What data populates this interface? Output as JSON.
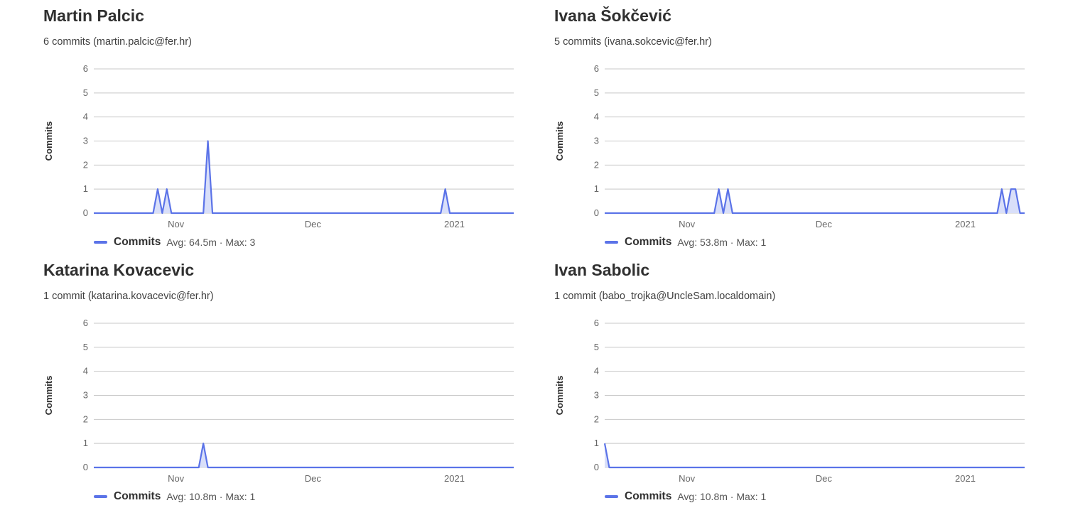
{
  "authors": [
    {
      "name": "Martin Palcic",
      "meta": "6 commits (martin.palcic@fer.hr)",
      "legend": {
        "series": "Commits",
        "stats": "Avg: 64.5m · Max: 3"
      }
    },
    {
      "name": "Ivana Šokčević",
      "meta": "5 commits (ivana.sokcevic@fer.hr)",
      "legend": {
        "series": "Commits",
        "stats": "Avg: 53.8m · Max: 1"
      }
    },
    {
      "name": "Katarina Kovacevic",
      "meta": "1 commit (katarina.kovacevic@fer.hr)",
      "legend": {
        "series": "Commits",
        "stats": "Avg: 10.8m · Max: 1"
      }
    },
    {
      "name": "Ivan Sabolic",
      "meta": "1 commit (babo_trojka@UncleSam.localdomain)",
      "legend": {
        "series": "Commits",
        "stats": "Avg: 10.8m · Max: 1"
      }
    }
  ],
  "chart_data": [
    {
      "type": "area",
      "ylabel": "Commits",
      "ylim": [
        0,
        6
      ],
      "yticks": [
        "0",
        "1",
        "2",
        "3",
        "4",
        "5",
        "6"
      ],
      "x_range": [
        "2020-10-14",
        "2021-01-14"
      ],
      "xticks": [
        {
          "label": "Nov",
          "date": "2020-11-01"
        },
        {
          "label": "Dec",
          "date": "2020-12-01"
        },
        {
          "label": "2021",
          "date": "2021-01-01"
        }
      ],
      "grid": true,
      "legend_position": "bottom-left",
      "series": [
        {
          "name": "Commits",
          "color": "#5b73e8",
          "points": [
            [
              "2020-10-14",
              0
            ],
            [
              "2020-10-27",
              0
            ],
            [
              "2020-10-28",
              1
            ],
            [
              "2020-10-29",
              0
            ],
            [
              "2020-10-30",
              1
            ],
            [
              "2020-10-31",
              0
            ],
            [
              "2020-11-07",
              0
            ],
            [
              "2020-11-08",
              3
            ],
            [
              "2020-11-09",
              0
            ],
            [
              "2020-12-29",
              0
            ],
            [
              "2020-12-30",
              1
            ],
            [
              "2020-12-31",
              0
            ],
            [
              "2021-01-14",
              0
            ]
          ]
        }
      ]
    },
    {
      "type": "area",
      "ylabel": "Commits",
      "ylim": [
        0,
        6
      ],
      "yticks": [
        "0",
        "1",
        "2",
        "3",
        "4",
        "5",
        "6"
      ],
      "x_range": [
        "2020-10-14",
        "2021-01-14"
      ],
      "xticks": [
        {
          "label": "Nov",
          "date": "2020-11-01"
        },
        {
          "label": "Dec",
          "date": "2020-12-01"
        },
        {
          "label": "2021",
          "date": "2021-01-01"
        }
      ],
      "grid": true,
      "legend_position": "bottom-left",
      "series": [
        {
          "name": "Commits",
          "color": "#5b73e8",
          "points": [
            [
              "2020-10-14",
              0
            ],
            [
              "2020-11-07",
              0
            ],
            [
              "2020-11-08",
              1
            ],
            [
              "2020-11-09",
              0
            ],
            [
              "2020-11-10",
              1
            ],
            [
              "2020-11-11",
              0
            ],
            [
              "2021-01-08",
              0
            ],
            [
              "2021-01-09",
              1
            ],
            [
              "2021-01-10",
              0
            ],
            [
              "2021-01-11",
              1
            ],
            [
              "2021-01-12",
              1
            ],
            [
              "2021-01-13",
              0
            ],
            [
              "2021-01-14",
              0
            ]
          ]
        }
      ]
    },
    {
      "type": "area",
      "ylabel": "Commits",
      "ylim": [
        0,
        6
      ],
      "yticks": [
        "0",
        "1",
        "2",
        "3",
        "4",
        "5",
        "6"
      ],
      "x_range": [
        "2020-10-14",
        "2021-01-14"
      ],
      "xticks": [
        {
          "label": "Nov",
          "date": "2020-11-01"
        },
        {
          "label": "Dec",
          "date": "2020-12-01"
        },
        {
          "label": "2021",
          "date": "2021-01-01"
        }
      ],
      "grid": true,
      "legend_position": "bottom-left",
      "series": [
        {
          "name": "Commits",
          "color": "#5b73e8",
          "points": [
            [
              "2020-10-14",
              0
            ],
            [
              "2020-11-06",
              0
            ],
            [
              "2020-11-07",
              1
            ],
            [
              "2020-11-08",
              0
            ],
            [
              "2021-01-14",
              0
            ]
          ]
        }
      ]
    },
    {
      "type": "area",
      "ylabel": "Commits",
      "ylim": [
        0,
        6
      ],
      "yticks": [
        "0",
        "1",
        "2",
        "3",
        "4",
        "5",
        "6"
      ],
      "x_range": [
        "2020-10-14",
        "2021-01-14"
      ],
      "xticks": [
        {
          "label": "Nov",
          "date": "2020-11-01"
        },
        {
          "label": "Dec",
          "date": "2020-12-01"
        },
        {
          "label": "2021",
          "date": "2021-01-01"
        }
      ],
      "grid": true,
      "legend_position": "bottom-left",
      "series": [
        {
          "name": "Commits",
          "color": "#5b73e8",
          "points": [
            [
              "2020-10-14",
              1
            ],
            [
              "2020-10-15",
              0
            ],
            [
              "2021-01-14",
              0
            ]
          ]
        }
      ]
    }
  ]
}
